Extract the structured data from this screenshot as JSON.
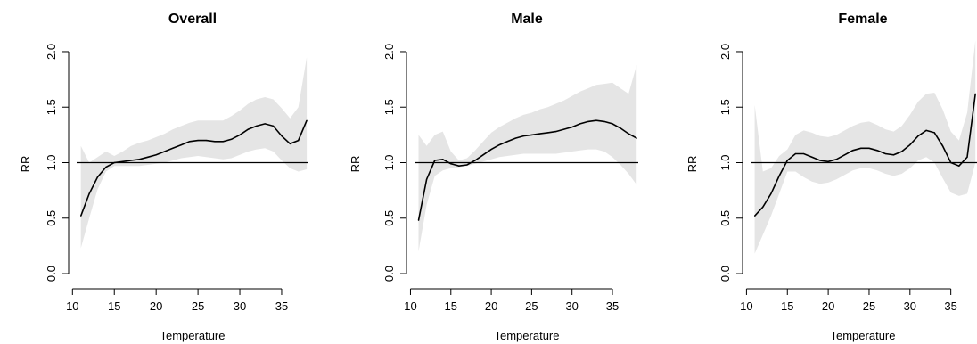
{
  "chart_data": [
    {
      "type": "line",
      "title": "Overall",
      "xlabel": "Temperature",
      "ylabel": "RR",
      "xlim": [
        10.5,
        38.2
      ],
      "ylim": [
        -0.08,
        2.08
      ],
      "xticks": [
        10,
        15,
        20,
        25,
        30,
        35
      ],
      "yticks": [
        0.0,
        0.5,
        1.0,
        1.5,
        2.0
      ],
      "ytick_labels": [
        "0.0",
        "0.5",
        "1.0",
        "1.5",
        "2.0"
      ],
      "reference_line": 1.0,
      "series": [
        {
          "x": [
            11,
            12,
            13,
            14,
            15,
            16,
            17,
            18,
            19,
            20,
            21,
            22,
            23,
            24,
            25,
            26,
            27,
            28,
            29,
            30,
            31,
            32,
            33,
            34,
            35,
            36,
            37,
            38
          ],
          "y": [
            0.52,
            0.72,
            0.87,
            0.96,
            1.0,
            1.01,
            1.02,
            1.03,
            1.05,
            1.07,
            1.1,
            1.13,
            1.16,
            1.19,
            1.2,
            1.2,
            1.19,
            1.19,
            1.21,
            1.25,
            1.3,
            1.33,
            1.35,
            1.33,
            1.24,
            1.17,
            1.2,
            1.38
          ],
          "lower": [
            0.23,
            0.5,
            0.76,
            0.92,
            0.97,
            0.97,
            0.97,
            0.97,
            0.98,
            0.99,
            1.0,
            1.02,
            1.04,
            1.05,
            1.06,
            1.05,
            1.04,
            1.03,
            1.04,
            1.07,
            1.1,
            1.12,
            1.13,
            1.1,
            1.02,
            0.95,
            0.92,
            0.94
          ],
          "upper": [
            1.15,
            1.0,
            1.05,
            1.1,
            1.06,
            1.1,
            1.15,
            1.18,
            1.2,
            1.23,
            1.26,
            1.3,
            1.33,
            1.36,
            1.38,
            1.38,
            1.38,
            1.38,
            1.42,
            1.47,
            1.53,
            1.57,
            1.59,
            1.57,
            1.49,
            1.4,
            1.5,
            1.95
          ]
        }
      ]
    },
    {
      "type": "line",
      "title": "Male",
      "xlabel": "Temperature",
      "ylabel": "RR",
      "xlim": [
        10.5,
        38.2
      ],
      "ylim": [
        -0.08,
        2.08
      ],
      "xticks": [
        10,
        15,
        20,
        25,
        30,
        35
      ],
      "yticks": [
        0.0,
        0.5,
        1.0,
        1.5,
        2.0
      ],
      "ytick_labels": [
        "0.0",
        "0.5",
        "1.0",
        "1.5",
        "2.0"
      ],
      "reference_line": 1.0,
      "series": [
        {
          "x": [
            11,
            12,
            13,
            14,
            15,
            16,
            17,
            18,
            19,
            20,
            21,
            22,
            23,
            24,
            25,
            26,
            27,
            28,
            29,
            30,
            31,
            32,
            33,
            34,
            35,
            36,
            37,
            38
          ],
          "y": [
            0.48,
            0.85,
            1.02,
            1.03,
            0.99,
            0.97,
            0.98,
            1.02,
            1.07,
            1.12,
            1.16,
            1.19,
            1.22,
            1.24,
            1.25,
            1.26,
            1.27,
            1.28,
            1.3,
            1.32,
            1.35,
            1.37,
            1.38,
            1.37,
            1.35,
            1.31,
            1.26,
            1.22
          ],
          "lower": [
            0.2,
            0.62,
            0.88,
            0.93,
            0.95,
            0.96,
            0.97,
            0.99,
            1.01,
            1.03,
            1.05,
            1.06,
            1.07,
            1.08,
            1.08,
            1.08,
            1.08,
            1.08,
            1.09,
            1.1,
            1.11,
            1.12,
            1.12,
            1.1,
            1.05,
            0.98,
            0.9,
            0.8
          ],
          "upper": [
            1.25,
            1.15,
            1.25,
            1.28,
            1.1,
            1.02,
            1.04,
            1.11,
            1.19,
            1.27,
            1.32,
            1.36,
            1.4,
            1.43,
            1.45,
            1.48,
            1.5,
            1.53,
            1.56,
            1.6,
            1.64,
            1.67,
            1.7,
            1.71,
            1.72,
            1.67,
            1.62,
            1.88
          ]
        }
      ]
    },
    {
      "type": "line",
      "title": "Female",
      "xlabel": "Temperature",
      "ylabel": "RR",
      "xlim": [
        10.5,
        38.2
      ],
      "ylim": [
        -0.08,
        2.08
      ],
      "xticks": [
        10,
        15,
        20,
        25,
        30,
        35
      ],
      "yticks": [
        0.0,
        0.5,
        1.0,
        1.5,
        2.0
      ],
      "ytick_labels": [
        "0.0",
        "0.5",
        "1.0",
        "1.5",
        "2.0"
      ],
      "reference_line": 1.0,
      "series": [
        {
          "x": [
            11,
            12,
            13,
            14,
            15,
            16,
            17,
            18,
            19,
            20,
            21,
            22,
            23,
            24,
            25,
            26,
            27,
            28,
            29,
            30,
            31,
            32,
            33,
            34,
            35,
            36,
            37,
            38
          ],
          "y": [
            0.52,
            0.6,
            0.72,
            0.88,
            1.02,
            1.08,
            1.08,
            1.05,
            1.02,
            1.01,
            1.03,
            1.07,
            1.11,
            1.13,
            1.13,
            1.11,
            1.08,
            1.07,
            1.1,
            1.16,
            1.24,
            1.29,
            1.27,
            1.15,
            1.0,
            0.97,
            1.05,
            1.62
          ],
          "lower": [
            0.18,
            0.35,
            0.52,
            0.72,
            0.92,
            0.92,
            0.87,
            0.83,
            0.81,
            0.82,
            0.85,
            0.89,
            0.93,
            0.95,
            0.95,
            0.93,
            0.9,
            0.88,
            0.9,
            0.95,
            1.02,
            1.05,
            1.0,
            0.86,
            0.73,
            0.7,
            0.72,
            1.0
          ],
          "upper": [
            1.52,
            0.92,
            0.95,
            1.06,
            1.12,
            1.25,
            1.29,
            1.27,
            1.24,
            1.23,
            1.25,
            1.29,
            1.33,
            1.36,
            1.37,
            1.34,
            1.3,
            1.28,
            1.33,
            1.43,
            1.55,
            1.62,
            1.63,
            1.48,
            1.28,
            1.2,
            1.45,
            2.1
          ]
        }
      ]
    }
  ],
  "colors": {
    "line": "#000000",
    "ci_band": "#e5e5e5",
    "reference": "#000000"
  }
}
